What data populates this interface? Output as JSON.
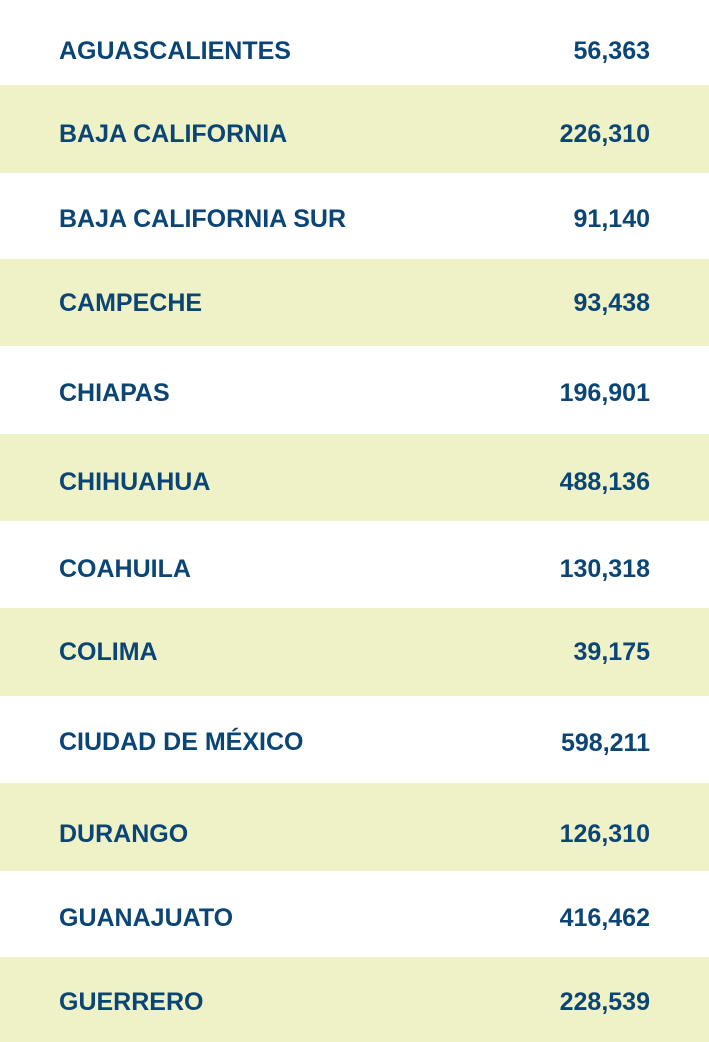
{
  "rows": [
    {
      "state": "AGUASCALIENTES",
      "value": "56,363"
    },
    {
      "state": "BAJA CALIFORNIA",
      "value": "226,310"
    },
    {
      "state": "BAJA CALIFORNIA SUR",
      "value": "91,140"
    },
    {
      "state": "CAMPECHE",
      "value": "93,438"
    },
    {
      "state": "CHIAPAS",
      "value": "196,901"
    },
    {
      "state": "CHIHUAHUA",
      "value": "488,136"
    },
    {
      "state": "COAHUILA",
      "value": "130,318"
    },
    {
      "state": "COLIMA",
      "value": "39,175"
    },
    {
      "state": "CIUDAD DE MÉXICO",
      "value": "598,211"
    },
    {
      "state": "DURANGO",
      "value": "126,310"
    },
    {
      "state": "GUANAJUATO",
      "value": "416,462"
    },
    {
      "state": "GUERRERO",
      "value": "228,539"
    }
  ]
}
